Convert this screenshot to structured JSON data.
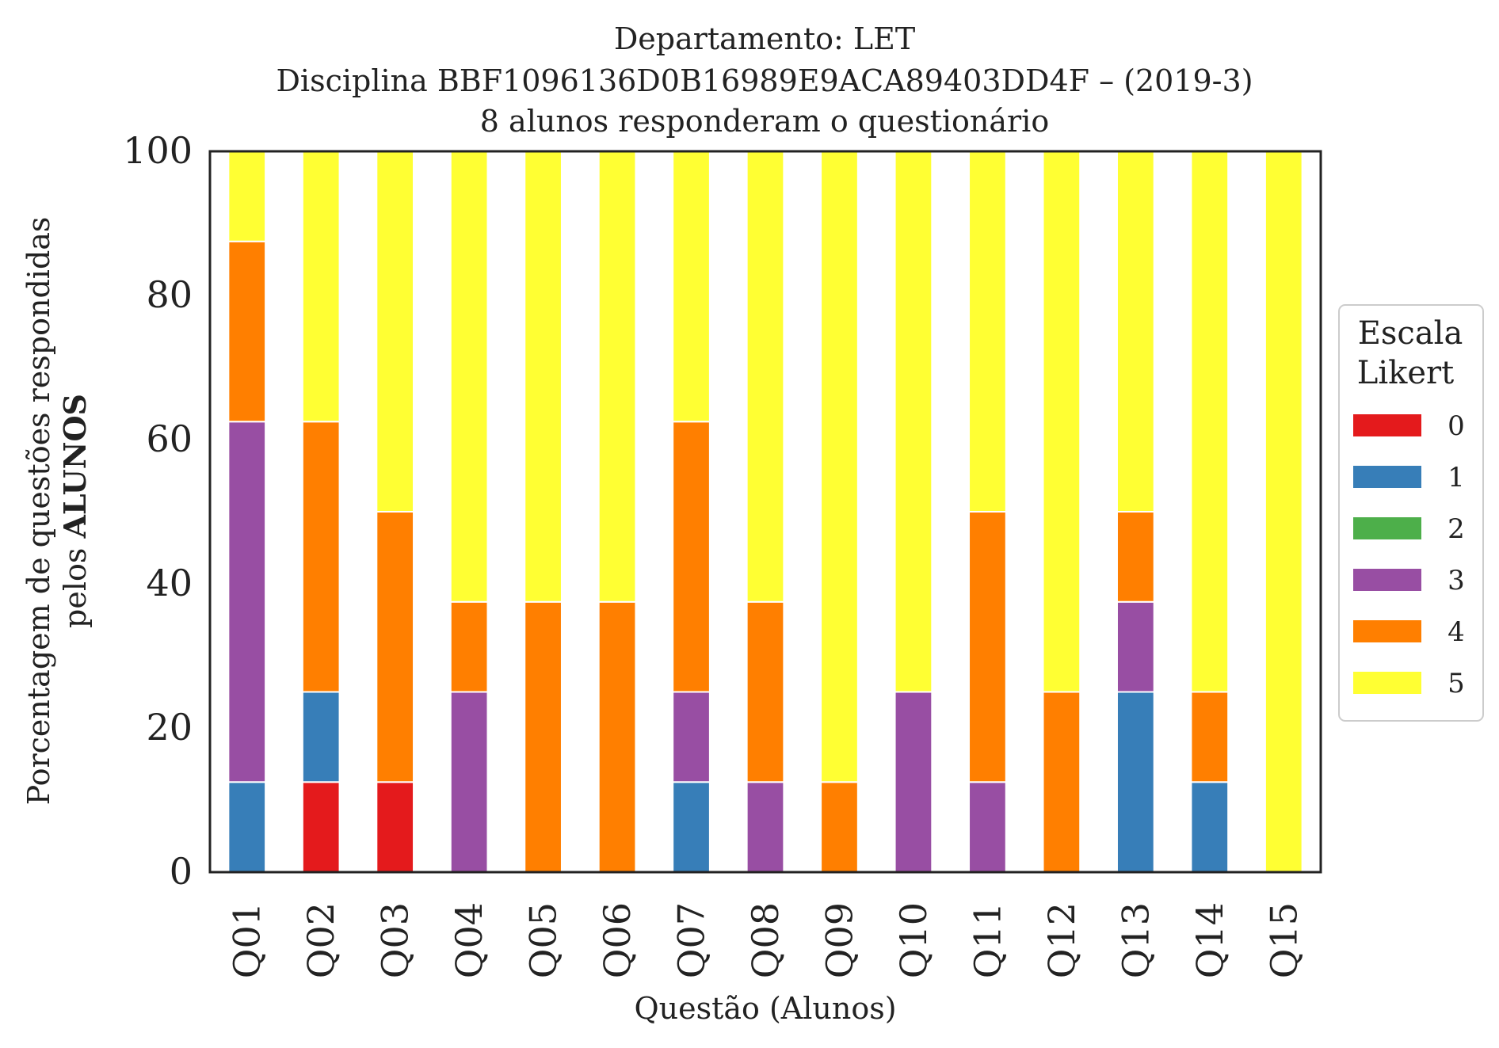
{
  "chart_data": {
    "type": "bar",
    "stacked": true,
    "title": [
      "Departamento: LET",
      "Disciplina BBF1096136D0B16989E9ACA89403DD4F – (2019-3)",
      "8 alunos responderam o questionário"
    ],
    "xlabel": "Questão (Alunos)",
    "ylabel": {
      "line1": "Porcentagem de questões respondidas",
      "line2_prefix": "pelos ",
      "line2_bold": "ALUNOS"
    },
    "ylim": [
      0,
      100
    ],
    "yticks": [
      "0",
      "20",
      "40",
      "60",
      "80",
      "100"
    ],
    "categories": [
      "Q01",
      "Q02",
      "Q03",
      "Q04",
      "Q05",
      "Q06",
      "Q07",
      "Q08",
      "Q09",
      "Q10",
      "Q11",
      "Q12",
      "Q13",
      "Q14",
      "Q15"
    ],
    "legend": {
      "title": [
        "Escala",
        "Likert"
      ],
      "placement": "right"
    },
    "series": [
      {
        "name": "0",
        "color": "#e41a1c",
        "values": [
          0,
          12.5,
          12.5,
          0,
          0,
          0,
          0,
          0,
          0,
          0,
          0,
          0,
          0,
          0,
          0
        ]
      },
      {
        "name": "1",
        "color": "#377eb8",
        "values": [
          12.5,
          12.5,
          0,
          0,
          0,
          0,
          12.5,
          0,
          0,
          0,
          0,
          0,
          25,
          12.5,
          0
        ]
      },
      {
        "name": "2",
        "color": "#4daf4a",
        "values": [
          0,
          0,
          0,
          0,
          0,
          0,
          0,
          0,
          0,
          0,
          0,
          0,
          0,
          0,
          0
        ]
      },
      {
        "name": "3",
        "color": "#984ea3",
        "values": [
          50,
          0,
          0,
          25,
          0,
          0,
          12.5,
          12.5,
          0,
          25,
          12.5,
          0,
          12.5,
          0,
          0
        ]
      },
      {
        "name": "4",
        "color": "#ff7f00",
        "values": [
          25,
          37.5,
          37.5,
          12.5,
          37.5,
          37.5,
          37.5,
          25,
          12.5,
          0,
          37.5,
          25,
          12.5,
          12.5,
          0
        ]
      },
      {
        "name": "5",
        "color": "#ffff33",
        "values": [
          12.5,
          37.5,
          50,
          62.5,
          62.5,
          62.5,
          37.5,
          62.5,
          87.5,
          75,
          50,
          75,
          50,
          75,
          100
        ]
      }
    ]
  }
}
